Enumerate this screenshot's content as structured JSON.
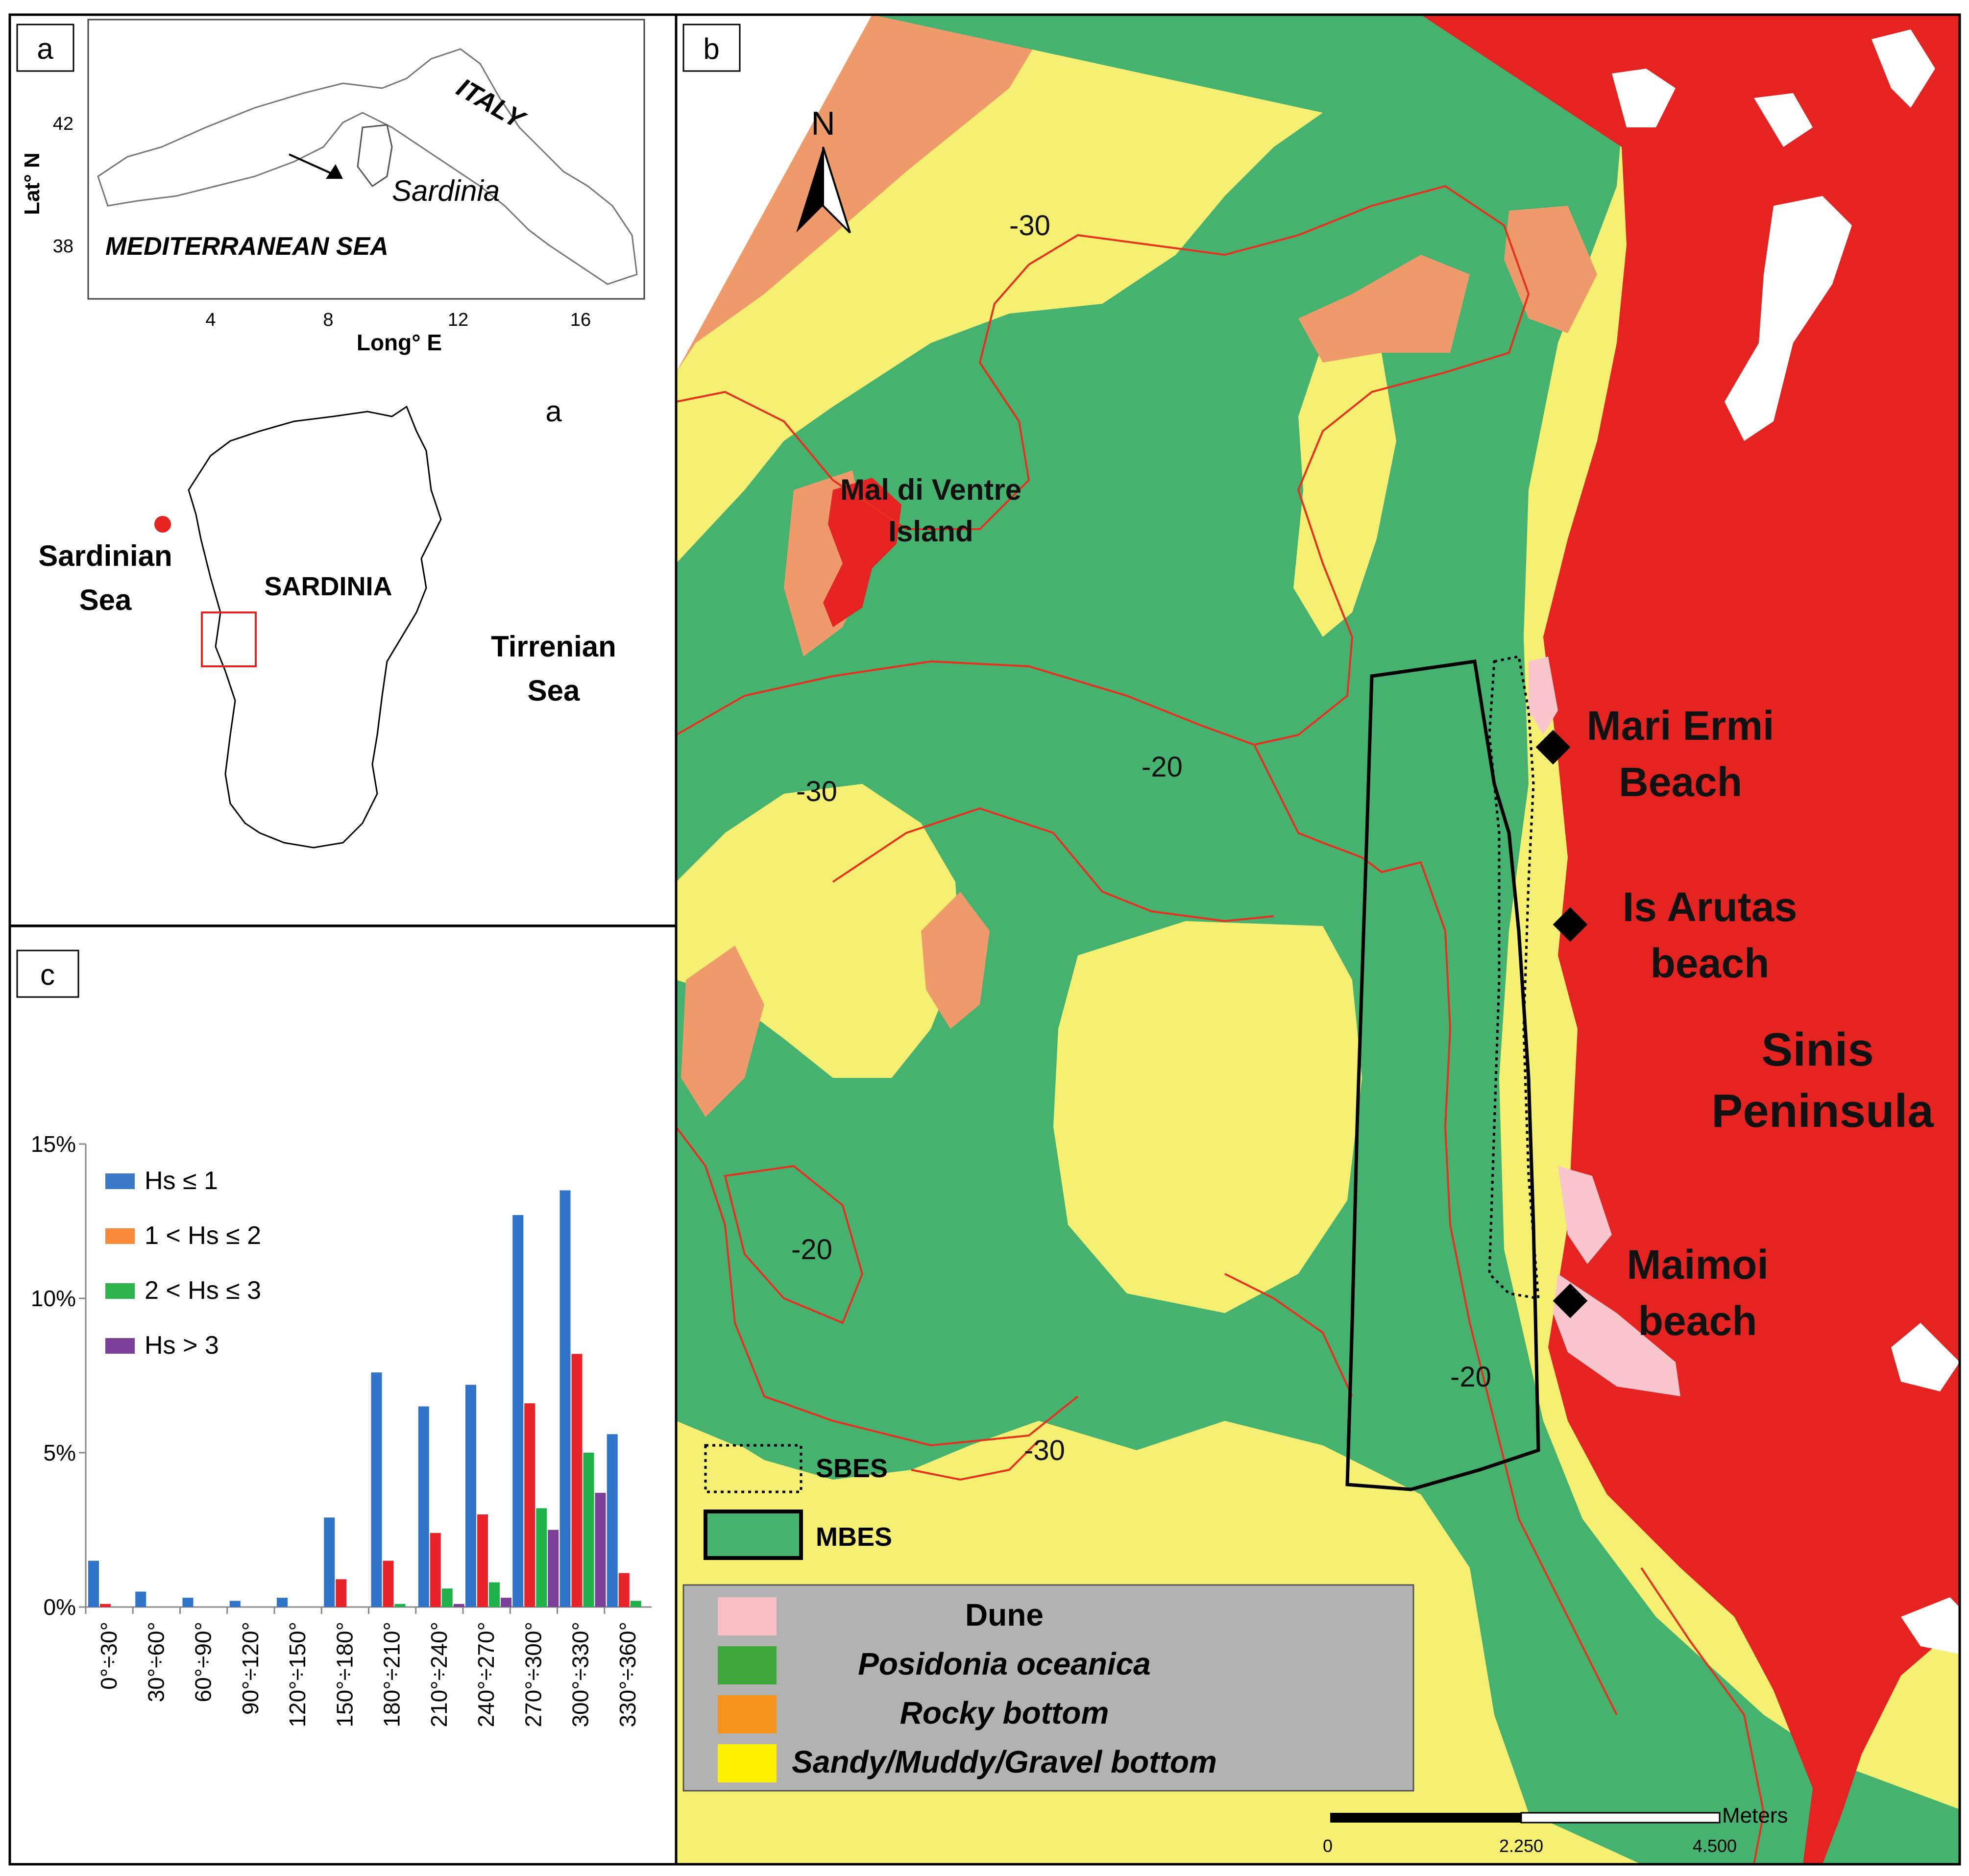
{
  "panel_labels": {
    "a": "a",
    "a2": "a",
    "b": "b",
    "c": "c"
  },
  "inset_map": {
    "lat_label": "Lat° N",
    "long_label": "Long° E",
    "lat_ticks": [
      "42",
      "38"
    ],
    "long_ticks": [
      "4",
      "8",
      "12",
      "16"
    ],
    "labels": {
      "italy": "ITALY",
      "sardinia": "Sardinia",
      "sea": "MEDITERRANEAN SEA"
    }
  },
  "sardinia_map": {
    "labels": {
      "sardinian_sea_1": "Sardinian",
      "sardinian_sea_2": "Sea",
      "sardinia": "SARDINIA",
      "tirrenian_1": "Tirrenian",
      "tirrenian_2": "Sea"
    }
  },
  "main_map": {
    "north": "N",
    "places": {
      "mal_di_ventre_1": "Mal di Ventre",
      "mal_di_ventre_2": "Island",
      "mari_ermi_1": "Mari Ermi",
      "mari_ermi_2": "Beach",
      "is_arutas_1": "Is Arutas",
      "is_arutas_2": "beach",
      "sinis_1": "Sinis",
      "sinis_2": "Peninsula",
      "maimoi_1": "Maimoi",
      "maimoi_2": "beach"
    },
    "contours": {
      "c1": "-30",
      "c2": "-20",
      "c3": "-30",
      "c4": "-20",
      "c5": "-20",
      "c6": "-30"
    },
    "survey_legend": {
      "sbes": "SBES",
      "mbes": "MBES"
    },
    "legend": [
      {
        "label": "Dune",
        "color": "#f9bfc4",
        "italic": false
      },
      {
        "label": "Posidonia oceanica",
        "color": "#3ea63a",
        "italic": true
      },
      {
        "label": "Rocky bottom",
        "color": "#f7941d",
        "italic": true
      },
      {
        "label": "Sandy/Muddy/Gravel bottom",
        "color": "#fff200",
        "italic": true
      }
    ],
    "scale": {
      "unit": "Meters",
      "ticks": [
        "0",
        "2.250",
        "4.500"
      ]
    },
    "colors": {
      "posidonia": "#45b26f",
      "sand": "#f5ef72",
      "rock": "#ef9a6a",
      "land": "#e52320",
      "dune": "#f8c6cc",
      "contour": "#e8301e"
    }
  },
  "chart_data": {
    "type": "bar",
    "title": "",
    "xlabel": "",
    "ylabel": "",
    "ylim": [
      0,
      15
    ],
    "y_ticks": [
      "0%",
      "5%",
      "10%",
      "15%"
    ],
    "categories": [
      "0°÷30°",
      "30°÷60°",
      "60°÷90°",
      "90°÷120°",
      "120°÷150°",
      "150°÷180°",
      "180°÷210°",
      "210°÷240°",
      "240°÷270°",
      "270°÷300°",
      "300°÷330°",
      "330°÷360°"
    ],
    "legend_placement": "top-left",
    "series": [
      {
        "name": "Hs ≤ 1",
        "legend_color": "#3a78c8",
        "color": "#2f74c8",
        "values": [
          1.5,
          0.5,
          0.3,
          0.2,
          0.3,
          2.9,
          7.6,
          6.5,
          7.2,
          12.7,
          13.5,
          5.6
        ]
      },
      {
        "name": "1 <  Hs ≤ 2",
        "legend_color": "#f7893a",
        "color": "#e8232a",
        "values": [
          0.1,
          0.0,
          0.0,
          0.0,
          0.0,
          0.9,
          1.5,
          2.4,
          3.0,
          6.6,
          8.2,
          1.1
        ]
      },
      {
        "name": "2 < Hs ≤ 3",
        "legend_color": "#2db34a",
        "color": "#1eb14a",
        "values": [
          0.0,
          0.0,
          0.0,
          0.0,
          0.0,
          0.0,
          0.1,
          0.6,
          0.8,
          3.2,
          5.0,
          0.2
        ]
      },
      {
        "name": "Hs > 3",
        "legend_color": "#7b3f98",
        "color": "#7b3f98",
        "values": [
          0.0,
          0.0,
          0.0,
          0.0,
          0.0,
          0.0,
          0.0,
          0.1,
          0.3,
          2.5,
          3.7,
          0.0
        ]
      }
    ]
  }
}
